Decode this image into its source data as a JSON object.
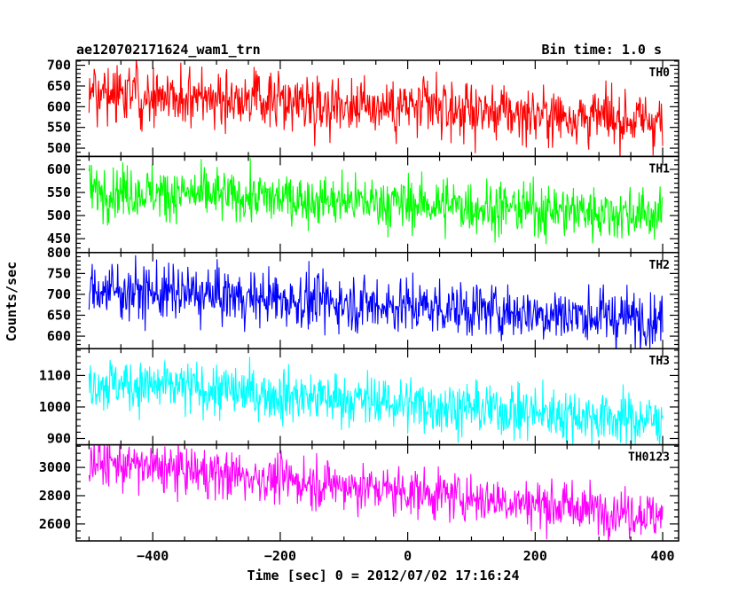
{
  "header": {
    "left": "ae120702171624_wam1_trn",
    "right": "Bin time: 1.0 s"
  },
  "axes": {
    "xlabel": "Time [sec] 0 = 2012/07/02 17:16:24",
    "ylabel": "Counts/sec"
  },
  "chart_data": {
    "type": "line",
    "title": "ae120702171624_wam1_trn",
    "bin_time": "Bin time: 1.0 s",
    "xlabel": "Time [sec] 0 = 2012/07/02 17:16:24",
    "ylabel": "Counts/sec",
    "xlim": [
      -520,
      425
    ],
    "x_range": [
      -500,
      400
    ],
    "x_ticks": [
      -400,
      -200,
      0,
      200,
      400
    ],
    "x_minor_step": 50,
    "panels": [
      {
        "name": "TH0",
        "color": "#ff0000",
        "ylim": [
          480,
          712
        ],
        "y_ticks": [
          500,
          550,
          600,
          650,
          700
        ],
        "y_minor_step": 10,
        "trend_start": 640,
        "trend_end": 565,
        "noise_sd": 35
      },
      {
        "name": "TH1",
        "color": "#00ff00",
        "ylim": [
          420,
          628
        ],
        "y_ticks": [
          450,
          500,
          550,
          600
        ],
        "y_minor_step": 10,
        "trend_start": 555,
        "trend_end": 502,
        "noise_sd": 28
      },
      {
        "name": "TH2",
        "color": "#0000ff",
        "ylim": [
          570,
          800
        ],
        "y_ticks": [
          600,
          650,
          700,
          750,
          800
        ],
        "y_minor_step": 10,
        "trend_start": 712,
        "trend_end": 640,
        "noise_sd": 33
      },
      {
        "name": "TH3",
        "color": "#00ffff",
        "ylim": [
          880,
          1185
        ],
        "y_ticks": [
          900,
          1000,
          1100
        ],
        "y_minor_step": 20,
        "trend_start": 1080,
        "trend_end": 955,
        "noise_sd": 42
      },
      {
        "name": "TH0123",
        "color": "#ff00ff",
        "ylim": [
          2480,
          3160
        ],
        "y_ticks": [
          2600,
          2800,
          3000
        ],
        "y_minor_step": 50,
        "trend_start": 3040,
        "trend_end": 2660,
        "noise_sd": 85
      }
    ]
  }
}
